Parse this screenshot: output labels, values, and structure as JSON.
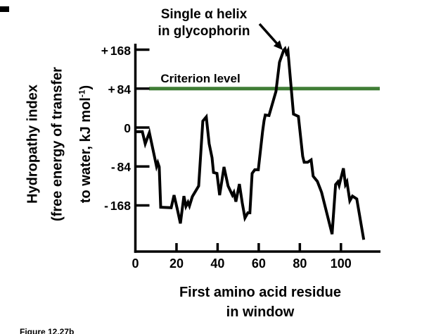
{
  "annotation": {
    "line1": "Single α helix",
    "line2": "in glycophorin"
  },
  "criterion": {
    "label": "Criterion level"
  },
  "y_axis": {
    "title_line1": "Hydropathy index",
    "title_line2": "(free energy of transfer",
    "title_line3_pre": "to water, kJ mol",
    "title_line3_sup": "-1",
    "title_line3_post": ")",
    "ticks": [
      {
        "value": 168,
        "label": "+ 168"
      },
      {
        "value": 84,
        "label": "+ 84"
      },
      {
        "value": 0,
        "label": "0"
      },
      {
        "value": -84,
        "label": "- 84"
      },
      {
        "value": -168,
        "label": "- 168"
      }
    ]
  },
  "x_axis": {
    "title_line1": "First amino acid residue",
    "title_line2": "in window",
    "ticks": [
      {
        "value": 0,
        "label": "0"
      },
      {
        "value": 20,
        "label": "20"
      },
      {
        "value": 40,
        "label": "40"
      },
      {
        "value": 60,
        "label": "60"
      },
      {
        "value": 80,
        "label": "80"
      },
      {
        "value": 100,
        "label": "100"
      }
    ]
  },
  "caption": "Figure 12.27b",
  "colors": {
    "curve": "#000000",
    "axis": "#000000",
    "criterion_line": "#3f7d35",
    "text": "#000000"
  },
  "chart_data": {
    "type": "line",
    "title": "",
    "xlabel": "First amino acid residue in window",
    "ylabel": "Hydropathy index (free energy of transfer to water, kJ mol⁻¹)",
    "xlim": [
      0,
      119
    ],
    "ylim": [
      -268,
      181
    ],
    "x_ticks": [
      0,
      20,
      40,
      60,
      80,
      100
    ],
    "y_ticks": [
      168,
      84,
      0,
      -84,
      -168
    ],
    "grid": false,
    "legend": "none",
    "criterion_level": 84,
    "annotation_text": "Single α helix in glycophorin",
    "annotation_points_to": [
      73,
      170
    ],
    "series": [
      {
        "name": "hydropathy",
        "points": [
          [
            0,
            -9
          ],
          [
            3.4,
            -9
          ],
          [
            4.8,
            -35
          ],
          [
            6.8,
            -11
          ],
          [
            10.3,
            -84
          ],
          [
            10.9,
            -76
          ],
          [
            11.6,
            -85
          ],
          [
            12.3,
            -172
          ],
          [
            17.4,
            -173
          ],
          [
            18.8,
            -146
          ],
          [
            20.5,
            -178
          ],
          [
            21.9,
            -207
          ],
          [
            23.6,
            -148
          ],
          [
            24.6,
            -170
          ],
          [
            25.6,
            -161
          ],
          [
            26.3,
            -169
          ],
          [
            27.7,
            -149
          ],
          [
            30.8,
            -126
          ],
          [
            32.8,
            14
          ],
          [
            34.5,
            23
          ],
          [
            35.9,
            -35
          ],
          [
            37.3,
            -65
          ],
          [
            38,
            -97
          ],
          [
            39.7,
            -99
          ],
          [
            41,
            -146
          ],
          [
            43.1,
            -85
          ],
          [
            45.1,
            -126
          ],
          [
            47.2,
            -146
          ],
          [
            47.9,
            -140
          ],
          [
            48.9,
            -160
          ],
          [
            50.6,
            -122
          ],
          [
            52,
            -163
          ],
          [
            53.3,
            -195
          ],
          [
            54.7,
            -184
          ],
          [
            55.7,
            -184
          ],
          [
            56.8,
            -99
          ],
          [
            58.1,
            -91
          ],
          [
            59.8,
            -91
          ],
          [
            61.9,
            -8
          ],
          [
            62.6,
            15
          ],
          [
            63.2,
            27
          ],
          [
            65,
            26
          ],
          [
            68.4,
            78
          ],
          [
            70.1,
            141
          ],
          [
            72.1,
            166
          ],
          [
            72.8,
            170
          ],
          [
            73.5,
            160
          ],
          [
            74.2,
            166
          ],
          [
            76.9,
            29
          ],
          [
            79.3,
            24
          ],
          [
            81.4,
            -62
          ],
          [
            82.1,
            -75
          ],
          [
            83.8,
            -75
          ],
          [
            85.5,
            -70
          ],
          [
            86.5,
            -105
          ],
          [
            88.5,
            -116
          ],
          [
            89.9,
            -132
          ],
          [
            90.6,
            -140
          ],
          [
            95.7,
            -230
          ],
          [
            97.4,
            -123
          ],
          [
            98.5,
            -117
          ],
          [
            99.1,
            -125
          ],
          [
            101.2,
            -88
          ],
          [
            102.2,
            -123
          ],
          [
            102.9,
            -117
          ],
          [
            104.3,
            -158
          ],
          [
            105.6,
            -148
          ],
          [
            107.7,
            -154
          ],
          [
            111.1,
            -242
          ]
        ]
      }
    ]
  }
}
